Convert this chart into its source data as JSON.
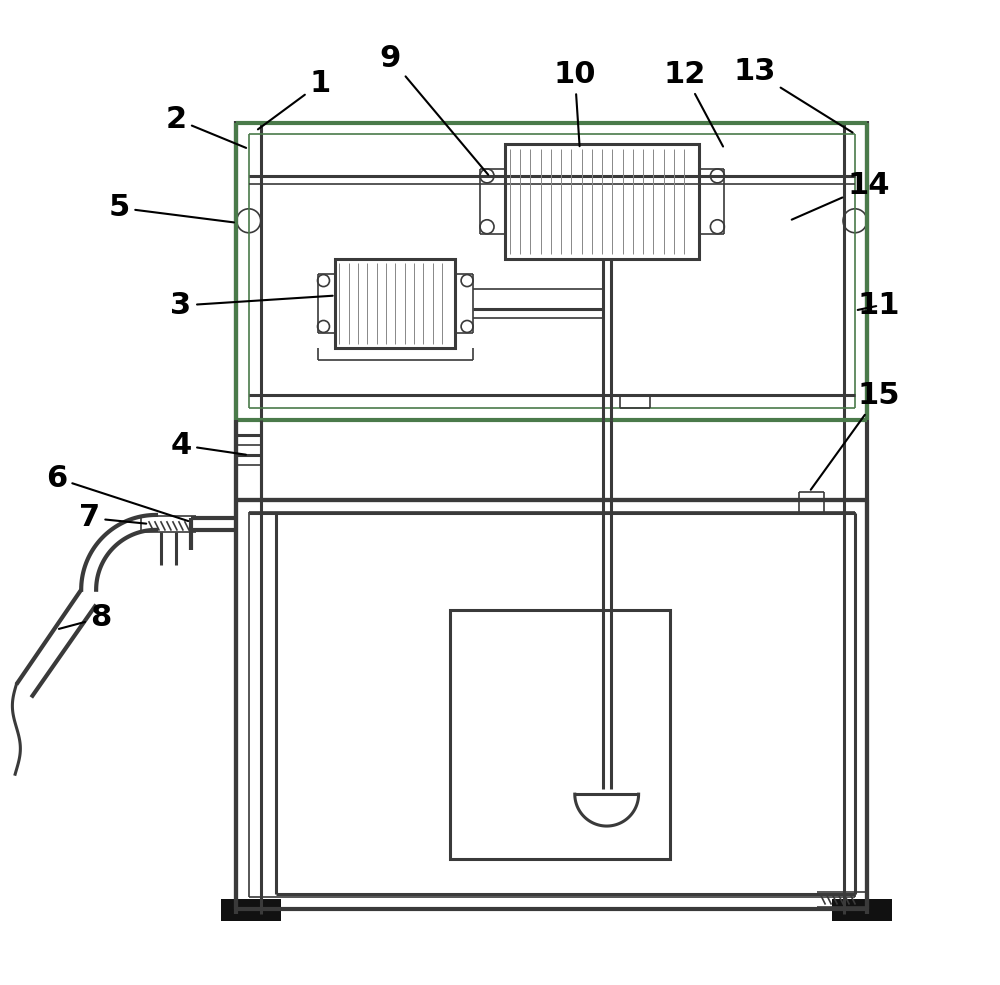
{
  "bg_color": "#ffffff",
  "line_color": "#3a3a3a",
  "label_fontsize": 22,
  "lw_main": 2.2,
  "lw_thin": 1.2,
  "lw_thick": 3.0,
  "green_color": "#4a7a4a",
  "gray_fill": "#d0d0d0"
}
